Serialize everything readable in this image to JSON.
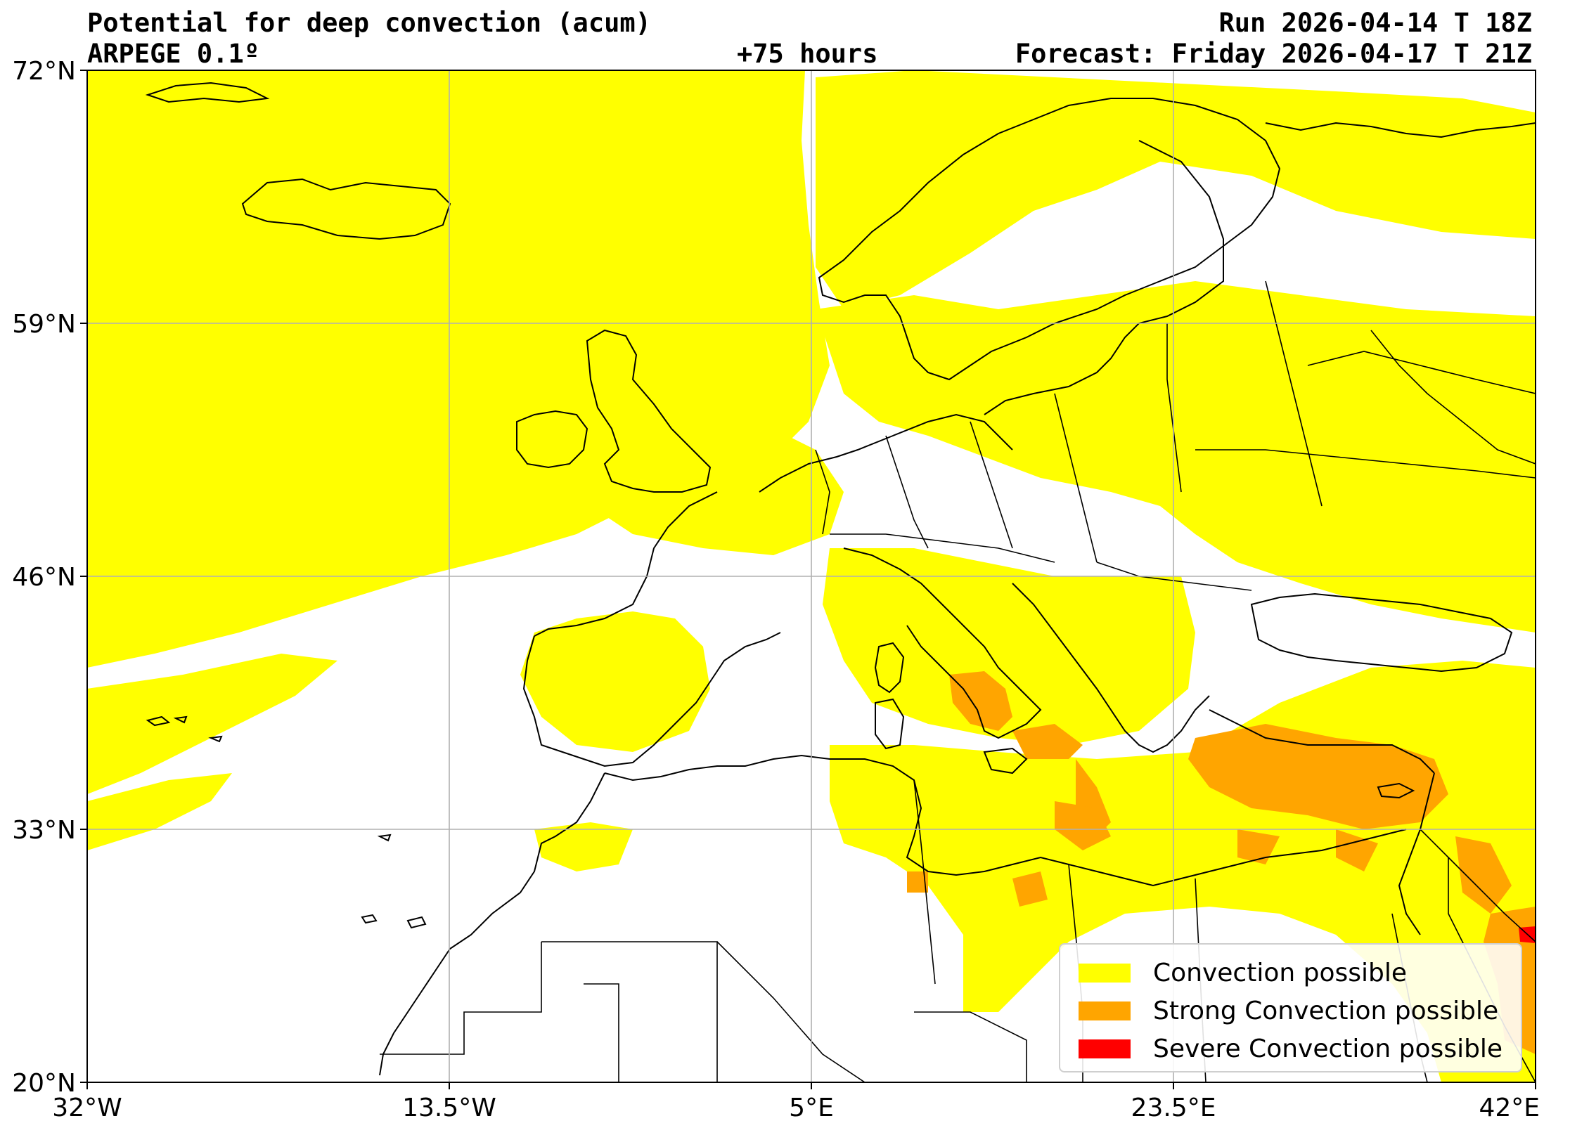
{
  "header": {
    "title": "Potential for deep convection (acum)",
    "model": "ARPEGE 0.1º",
    "lead_time": "+75 hours",
    "run": "Run 2026-04-14 T 18Z",
    "forecast": "Forecast: Friday 2026-04-17 T 21Z"
  },
  "axes": {
    "lat_ticks": [
      "72°N",
      "59°N",
      "46°N",
      "33°N",
      "20°N"
    ],
    "lon_ticks": [
      "32°W",
      "13.5°W",
      "5°E",
      "23.5°E",
      "42°E"
    ],
    "lat_range": [
      20,
      72
    ],
    "lon_range": [
      -32,
      42
    ],
    "grid": true
  },
  "legend": {
    "placement": "lower-right",
    "items": [
      {
        "label": "Convection possible",
        "color": "#ffff00"
      },
      {
        "label": "Strong Convection possible",
        "color": "#ffa500"
      },
      {
        "label": "Severe Convection possible",
        "color": "#ff0000"
      }
    ]
  },
  "colors": {
    "convection": "#ffff00",
    "strong": "#ffa500",
    "severe": "#ff0000",
    "coastline": "#000000",
    "grid": "#b0b0b0"
  }
}
